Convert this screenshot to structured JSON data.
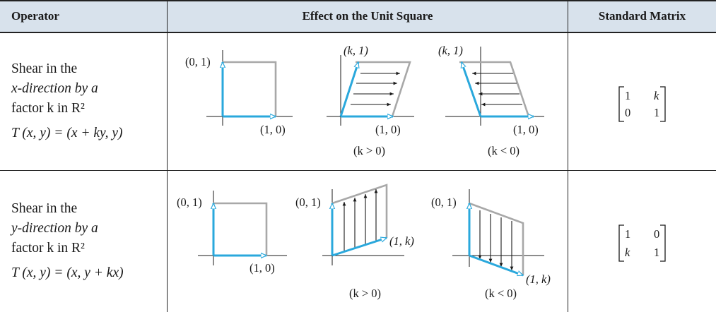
{
  "headers": {
    "operator": "Operator",
    "effect": "Effect on the Unit Square",
    "matrix": "Standard Matrix"
  },
  "rows": [
    {
      "operator_lines": [
        "Shear in the",
        "x-direction by a",
        "factor k in R²",
        "T (x, y) = (x + ky, y)"
      ],
      "labels": {
        "p01": "(0, 1)",
        "p10": "(1, 0)",
        "pk1": "(k, 1)",
        "cond_pos": "(k > 0)",
        "cond_neg": "(k < 0)"
      },
      "matrix": [
        [
          "1",
          "k"
        ],
        [
          "0",
          "1"
        ]
      ]
    },
    {
      "operator_lines": [
        "Shear in the",
        "y-direction by a",
        "factor k in R²",
        "T (x, y) = (x, y + kx)"
      ],
      "labels": {
        "p01": "(0, 1)",
        "p10": "(1, 0)",
        "p1k": "(1, k)",
        "cond_pos": "(k > 0)",
        "cond_neg": "(k < 0)"
      },
      "matrix": [
        [
          "1",
          "0"
        ],
        [
          "k",
          "1"
        ]
      ]
    }
  ],
  "colors": {
    "header_bg": "#d8e2ec",
    "vector": "#2aa8dc",
    "sheared_outline": "#a8a8a8"
  }
}
